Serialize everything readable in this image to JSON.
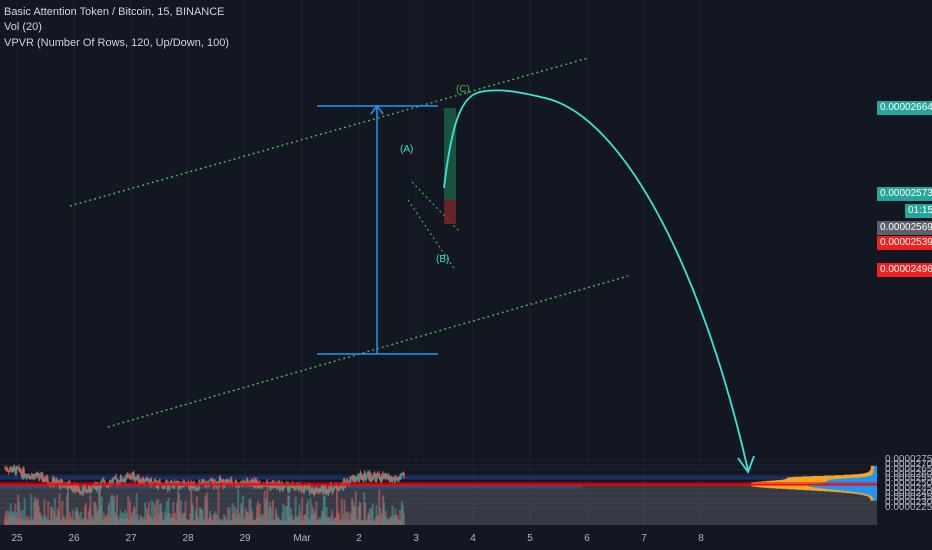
{
  "legend": {
    "symbol_line": "Basic Attention Token / Bitcoin, 15, BINANCE",
    "vol_line": "Vol (20)",
    "vpvr_line": "VPVR (Number Of Rows, 120, Up/Down, 100)"
  },
  "colors": {
    "background": "#131722",
    "grid": "#1e2230",
    "candle_up": "#26a69a",
    "candle_down": "#ef5350",
    "zone": "#2962ff",
    "support_line": "#ff0000",
    "projection": "#39e6d4",
    "trendline": "#4caf50",
    "measure": "#2196f3",
    "vpvr_up": "#2196f3",
    "vpvr_down": "#f5a623"
  },
  "annotations": {
    "a": "(A)",
    "b": "(B)",
    "c": "(C)"
  },
  "price_tags": [
    {
      "label": "0.00002664",
      "color": "#26a69a"
    },
    {
      "label": "0.00002573",
      "color": "#26a69a"
    },
    {
      "label": "01:15",
      "color": "#26a69a"
    },
    {
      "label": "0.00002569",
      "color": "#5d606b"
    },
    {
      "label": "0.00002539",
      "color": "#ef2020"
    },
    {
      "label": "0.00002496",
      "color": "#ef2020"
    }
  ],
  "chart_data": {
    "type": "candlestick",
    "title": "Basic Attention Token / Bitcoin, 15, BINANCE",
    "x_ticks": [
      "25",
      "26",
      "27",
      "28",
      "29",
      "Mar",
      "2",
      "3",
      "4",
      "5",
      "6",
      "7",
      "8"
    ],
    "y_ticks": [
      "0.00002750",
      "0.00002700",
      "0.00002650",
      "0.00002600",
      "0.00002550",
      "0.00002500",
      "0.00002450",
      "0.00002400",
      "0.00002350",
      "0.00002300",
      "0.00002250"
    ],
    "y_tick_values": [
      2.75e-05,
      2.7e-05,
      2.65e-05,
      2.6e-05,
      2.55e-05,
      2.5e-05,
      2.45e-05,
      2.4e-05,
      2.35e-05,
      2.3e-05,
      2.25e-05
    ],
    "ylim": [
      2.238e-05,
      2.778e-05
    ],
    "price_path": [
      {
        "t": 0.0,
        "p": 2.67e-05
      },
      {
        "t": 0.3,
        "p": 2.62e-05
      },
      {
        "t": 0.55,
        "p": 2.58e-05
      },
      {
        "t": 0.9,
        "p": 2.51e-05
      },
      {
        "t": 1.1,
        "p": 2.49e-05
      },
      {
        "t": 1.25,
        "p": 2.45e-05
      },
      {
        "t": 1.45,
        "p": 2.43e-05
      },
      {
        "t": 1.65,
        "p": 2.5e-05
      },
      {
        "t": 1.9,
        "p": 2.53e-05
      },
      {
        "t": 2.05,
        "p": 2.55e-05
      },
      {
        "t": 2.25,
        "p": 2.58e-05
      },
      {
        "t": 2.45,
        "p": 2.53e-05
      },
      {
        "t": 2.7,
        "p": 2.49e-05
      },
      {
        "t": 3.0,
        "p": 2.49e-05
      },
      {
        "t": 3.3,
        "p": 2.48e-05
      },
      {
        "t": 3.7,
        "p": 2.52e-05
      },
      {
        "t": 4.1,
        "p": 2.51e-05
      },
      {
        "t": 4.4,
        "p": 2.51e-05
      },
      {
        "t": 4.7,
        "p": 2.49e-05
      },
      {
        "t": 5.1,
        "p": 2.46e-05
      },
      {
        "t": 5.4,
        "p": 2.44e-05
      },
      {
        "t": 5.65,
        "p": 2.45e-05
      },
      {
        "t": 5.9,
        "p": 2.48e-05
      },
      {
        "t": 6.1,
        "p": 2.55e-05
      },
      {
        "t": 6.35,
        "p": 2.59e-05
      },
      {
        "t": 6.55,
        "p": 2.57e-05
      },
      {
        "t": 6.8,
        "p": 2.55e-05
      },
      {
        "t": 7.0,
        "p": 2.57e-05
      }
    ],
    "red_support_level": 2.496e-05,
    "zones": [
      {
        "from": 2.55e-05,
        "to": 2.59e-05
      },
      {
        "from": 2.455e-05,
        "to": 2.49e-05
      }
    ],
    "projection_labels": [
      "(A)",
      "(B)",
      "(C)"
    ]
  }
}
